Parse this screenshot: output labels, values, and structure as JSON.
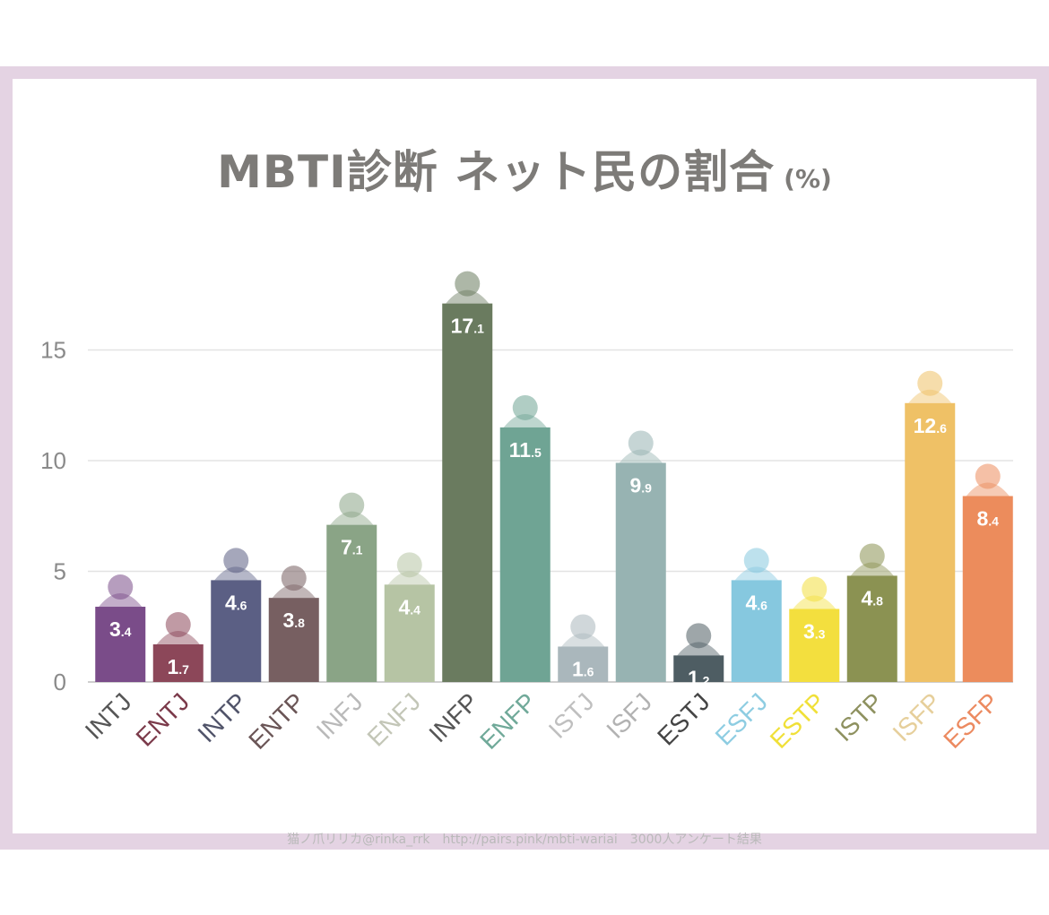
{
  "title": "MBTI診断 ネット民の割合",
  "unit": "(%)",
  "footer": "猫ノ爪リリカ@rinka_rrk　http://pairs.pink/mbti-wariai　3000人アンケート結果",
  "chart_data": {
    "type": "bar",
    "title": "MBTI診断 ネット民の割合 (%)",
    "categories": [
      "INTJ",
      "ENTJ",
      "INTP",
      "ENTP",
      "INFJ",
      "ENFJ",
      "INFP",
      "ENFP",
      "ISTJ",
      "ISFJ",
      "ESTJ",
      "ESFJ",
      "ESTP",
      "ISTP",
      "ISFP",
      "ESFP"
    ],
    "values": [
      3.4,
      1.7,
      4.6,
      3.8,
      7.1,
      4.4,
      17.1,
      11.5,
      1.6,
      9.9,
      1.2,
      4.6,
      3.3,
      4.8,
      12.6,
      8.4
    ],
    "colors": [
      "#7a4c89",
      "#8c4759",
      "#5b5f84",
      "#775f61",
      "#8aa486",
      "#b6c4a4",
      "#6a7b5f",
      "#6fa494",
      "#aab7bc",
      "#97b3b2",
      "#4e5d63",
      "#86c8df",
      "#f3df3e",
      "#8b9252",
      "#efc166",
      "#ec8c5c"
    ],
    "label_colors": [
      "#555555",
      "#7b3a4a",
      "#505369",
      "#6a5556",
      "#b9b9b9",
      "#c3c6b7",
      "#555555",
      "#70a999",
      "#bfbfbf",
      "#b2b2b2",
      "#444444",
      "#8ecde2",
      "#f0e038",
      "#8e915f",
      "#e6cf9b",
      "#ec8a60"
    ],
    "ylim": [
      0,
      18
    ],
    "yticks": [
      0,
      5,
      10,
      15
    ],
    "grid": true,
    "legend": "none"
  }
}
